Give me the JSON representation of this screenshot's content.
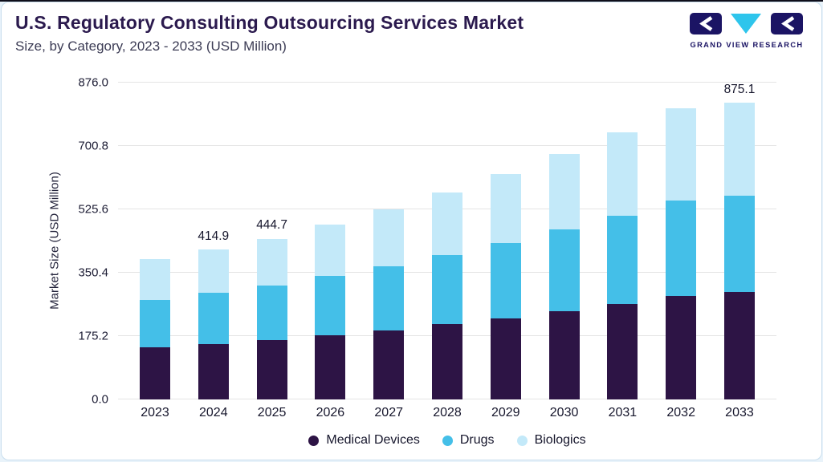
{
  "header": {
    "title": "U.S. Regulatory Consulting Outsourcing Services Market",
    "subtitle": "Size, by Category, 2023 - 2033 (USD Million)"
  },
  "logo": {
    "text": "GRAND VIEW RESEARCH"
  },
  "colors": {
    "title": "#2B1A4E",
    "page_background": "#E9F3FA",
    "logo_navy": "#1B1464",
    "logo_cyan": "#2EC5EC",
    "medical_devices": "#2D1445",
    "drugs": "#44BFE8",
    "biologics": "#C3E9F9"
  },
  "chart_data": {
    "type": "bar",
    "stacked": true,
    "title": "U.S. Regulatory Consulting Outsourcing Services Market Size, by Category, 2023 - 2033 (USD Million)",
    "xlabel": "",
    "ylabel": "Market Size (USD Million)",
    "ylim": [
      0,
      876.0
    ],
    "yticks": [
      "0.0",
      "175.2",
      "350.4",
      "525.6",
      "700.8",
      "876.0"
    ],
    "grid": "horizontal",
    "legend_position": "bottom",
    "categories": [
      "2023",
      "2024",
      "2025",
      "2026",
      "2027",
      "2028",
      "2029",
      "2030",
      "2031",
      "2032",
      "2033"
    ],
    "series": [
      {
        "name": "Medical Devices",
        "color": "#2D1445",
        "values": [
          143.9,
          153.2,
          163.4,
          177.0,
          191.7,
          207.6,
          224.9,
          243.6,
          263.9,
          286.0,
          316.0
        ]
      },
      {
        "name": "Drugs",
        "color": "#44BFE8",
        "values": [
          132.1,
          141.1,
          150.7,
          163.5,
          177.3,
          192.2,
          208.3,
          225.8,
          243.9,
          264.3,
          284.0
        ]
      },
      {
        "name": "Biologics",
        "color": "#C3E9F9",
        "values": [
          111.4,
          120.6,
          130.6,
          143.5,
          157.7,
          173.4,
          190.6,
          209.5,
          231.0,
          253.8,
          275.1
        ]
      }
    ],
    "totals": [
      387.4,
      414.9,
      444.7,
      484.0,
      526.7,
      573.2,
      623.8,
      678.9,
      738.8,
      804.1,
      875.1
    ],
    "annotations": {
      "2024": "414.9",
      "2025": "444.7",
      "2033": "875.1"
    }
  }
}
